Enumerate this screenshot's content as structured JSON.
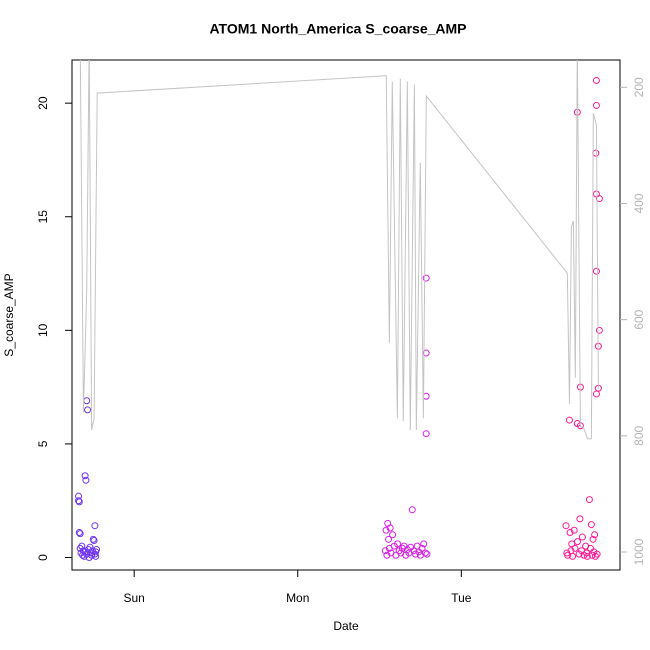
{
  "chart_data": {
    "type": "scatter",
    "title": "ATOM1 North_America S_coarse_AMP",
    "x_label": "Date",
    "y_label": "S_coarse_AMP",
    "xlim": [
      -0.38,
      2.97
    ],
    "xticks": [
      {
        "value": 0,
        "label": "Sun"
      },
      {
        "value": 1,
        "label": "Mon"
      },
      {
        "value": 2,
        "label": "Tue"
      }
    ],
    "ylim": [
      -0.55,
      21.9
    ],
    "yticks": [
      0,
      5,
      10,
      15,
      20
    ],
    "y2lim": [
      1031,
      153
    ],
    "y2ticks": [
      200,
      400,
      600,
      800,
      1000
    ],
    "y2_color": "#b4b4b4",
    "series": [
      {
        "color": "#6f35f2",
        "x": [
          -0.34,
          -0.34,
          -0.335,
          -0.335,
          -0.33,
          -0.33,
          -0.325,
          -0.32,
          -0.315,
          -0.31,
          -0.305,
          -0.3,
          -0.3,
          -0.295,
          -0.29,
          -0.29,
          -0.285,
          -0.28,
          -0.275,
          -0.27,
          -0.265,
          -0.26,
          -0.255,
          -0.25,
          -0.245,
          -0.24,
          -0.24,
          -0.235,
          -0.235,
          -0.23
        ],
        "values": [
          2.7,
          2.5,
          2.45,
          1.1,
          1.05,
          0.4,
          0.2,
          0.5,
          0.1,
          0.3,
          0.05,
          3.6,
          0.25,
          3.4,
          6.9,
          0.15,
          6.5,
          0.35,
          0.0,
          0.45,
          0.2,
          0.1,
          0.3,
          0.8,
          0.75,
          0.15,
          1.4,
          0.25,
          0.05,
          0.35
        ]
      },
      {
        "color": "#d81fe6",
        "x": [
          1.535,
          1.54,
          1.545,
          1.55,
          1.555,
          1.56,
          1.565,
          1.57,
          1.58,
          1.59,
          1.6,
          1.61,
          1.62,
          1.63,
          1.64,
          1.65,
          1.66,
          1.67,
          1.68,
          1.69,
          1.7,
          1.71,
          1.72,
          1.73,
          1.74,
          1.75,
          1.76,
          1.77,
          1.78,
          1.785,
          1.785,
          1.785,
          1.785,
          1.79
        ],
        "values": [
          0.3,
          1.2,
          0.1,
          1.5,
          0.8,
          0.4,
          1.3,
          0.2,
          1.0,
          0.5,
          0.1,
          0.6,
          0.3,
          0.2,
          0.4,
          0.5,
          0.1,
          0.35,
          0.2,
          0.45,
          2.1,
          0.3,
          0.15,
          0.5,
          0.25,
          0.1,
          0.4,
          0.6,
          0.2,
          12.3,
          9.0,
          7.1,
          5.45,
          0.15
        ]
      },
      {
        "color": "#ff1a96",
        "x": [
          2.64,
          2.645,
          2.65,
          2.661,
          2.665,
          2.67,
          2.675,
          2.68,
          2.69,
          2.695,
          2.709,
          2.709,
          2.71,
          2.72,
          2.725,
          2.728,
          2.728,
          2.735,
          2.74,
          2.75,
          2.76,
          2.765,
          2.77,
          2.783,
          2.79,
          2.795,
          2.8,
          2.805,
          2.81,
          2.815,
          2.82,
          2.822,
          2.826,
          2.826,
          2.826,
          2.826,
          2.826,
          2.838,
          2.838,
          2.844,
          2.844,
          2.83
        ],
        "values": [
          1.4,
          0.2,
          0.1,
          6.05,
          1.1,
          0.3,
          0.6,
          0.05,
          1.2,
          0.4,
          19.6,
          5.9,
          0.7,
          0.15,
          1.7,
          5.8,
          7.5,
          0.3,
          0.9,
          0.1,
          0.5,
          0.2,
          0.05,
          2.55,
          0.4,
          1.45,
          0.1,
          0.8,
          0.25,
          1.0,
          0.05,
          17.8,
          21.0,
          19.9,
          16.0,
          12.6,
          7.2,
          9.3,
          7.45,
          15.8,
          10.0,
          0.15
        ]
      },
      {
        "type": "line",
        "axis": "y2",
        "color": "#c4c4c4",
        "x": [
          -0.33,
          -0.31,
          -0.29,
          -0.275,
          -0.26,
          -0.245,
          -0.226,
          1.541,
          1.56,
          1.578,
          1.609,
          1.627,
          1.645,
          1.67,
          1.688,
          1.713,
          1.725,
          1.749,
          1.768,
          1.786,
          2.648,
          2.661,
          2.673,
          2.685,
          2.697,
          2.709,
          2.728,
          2.746,
          2.771,
          2.795,
          2.807,
          2.826,
          2.838
        ],
        "values": [
          120,
          760,
          550,
          120,
          790,
          770,
          210,
          180,
          640,
          190,
          770,
          185,
          775,
          190,
          790,
          195,
          790,
          330,
          770,
          215,
          520,
          745,
          440,
          430,
          700,
          130,
          785,
          785,
          805,
          805,
          245,
          265,
          720
        ]
      }
    ]
  }
}
